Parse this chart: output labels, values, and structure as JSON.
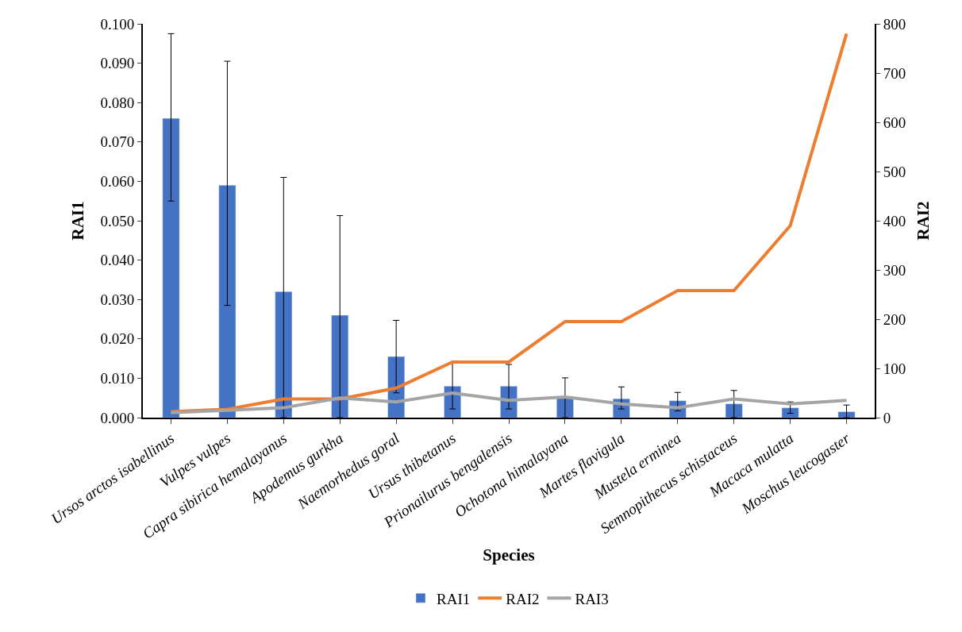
{
  "chart_data": {
    "type": "bar",
    "xlabel": "Species",
    "ylabel": "RAI1",
    "y2label": "RAI2",
    "categories": [
      "Ursos arctos isabellinus",
      "Vulpes vulpes",
      "Capra sibirica hemalayanus",
      "Apodemus gurkha",
      "Naemorhedus goral",
      "Ursus thibetanus",
      "Prionailurus bengalensis",
      "Ochotona himalayana",
      "Martes flavigula",
      "Mustela erminea",
      "Semnopithecus schistaceus",
      "Macaca mulatta",
      "Moschus leucogaster"
    ],
    "series": [
      {
        "name": "RAI1",
        "color": "#4472c4",
        "values": [
          0.076,
          0.059,
          0.032,
          0.026,
          0.0155,
          0.008,
          0.008,
          0.005,
          0.0048,
          0.0043,
          0.0035,
          0.0025,
          0.0015
        ],
        "errors": [
          [
            0.055,
            0.0975
          ],
          [
            0.0285,
            0.0905
          ],
          [
            0.0,
            0.061
          ],
          [
            0.0,
            0.0513
          ],
          [
            0.0063,
            0.0247
          ],
          [
            0.0022,
            0.0138
          ],
          [
            0.0022,
            0.0135
          ],
          [
            0.0,
            0.0101
          ],
          [
            0.0022,
            0.0078
          ],
          [
            0.0017,
            0.0064
          ],
          [
            0.0,
            0.0069
          ],
          [
            0.0011,
            0.004
          ],
          [
            0.0,
            0.0032
          ]
        ]
      },
      {
        "name": "RAI2",
        "type": "line",
        "axis": "y2",
        "color": "#ed7d31",
        "values": [
          12,
          17,
          38,
          38,
          60,
          113,
          113,
          195,
          195,
          258,
          258,
          390,
          780
        ]
      },
      {
        "name": "RAI3",
        "type": "line",
        "axis": "y2",
        "color": "#a5a5a5",
        "values": [
          10,
          15,
          20,
          40,
          32,
          50,
          35,
          42,
          28,
          20,
          38,
          28,
          35
        ]
      }
    ],
    "ylim": [
      0,
      0.1
    ],
    "yticks": [
      {
        "value": 0,
        "label": "0.000"
      },
      {
        "value": 0.01,
        "label": "0.010"
      },
      {
        "value": 0.02,
        "label": "0.020"
      },
      {
        "value": 0.03,
        "label": "0.030"
      },
      {
        "value": 0.04,
        "label": "0.040"
      },
      {
        "value": 0.05,
        "label": "0.050"
      },
      {
        "value": 0.06,
        "label": "0.060"
      },
      {
        "value": 0.07,
        "label": "0.070"
      },
      {
        "value": 0.08,
        "label": "0.080"
      },
      {
        "value": 0.09,
        "label": "0.090"
      },
      {
        "value": 0.1,
        "label": "0.100"
      }
    ],
    "y2lim": [
      0,
      800
    ],
    "y2ticks": [
      0,
      100,
      200,
      300,
      400,
      500,
      600,
      700,
      800
    ],
    "legend": "bottom",
    "marker": "none",
    "line_style": "solid"
  }
}
